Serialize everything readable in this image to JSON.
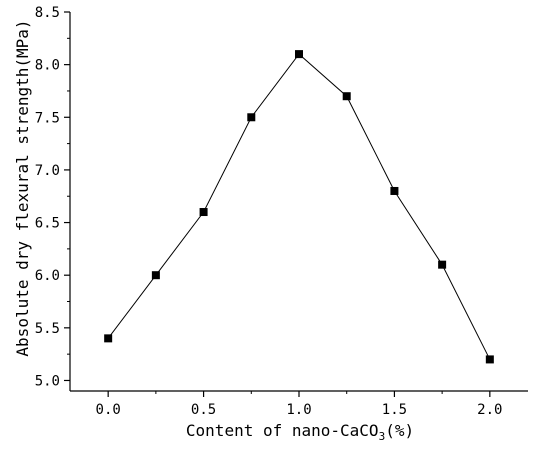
{
  "chart_data": {
    "type": "line",
    "title": "",
    "xlabel_prefix": "Content of nano-CaCO",
    "xlabel_sub": "3",
    "xlabel_suffix": "(%)",
    "ylabel": "Absolute dry flexural strength(MPa)",
    "xlim": [
      -0.2,
      2.2
    ],
    "ylim": [
      4.9,
      8.5
    ],
    "x_ticks": [
      0.0,
      0.5,
      1.0,
      1.5,
      2.0
    ],
    "x_tick_labels": [
      "0.0",
      "0.5",
      "1.0",
      "1.5",
      "2.0"
    ],
    "y_ticks": [
      5.0,
      5.5,
      6.0,
      6.5,
      7.0,
      7.5,
      8.0,
      8.5
    ],
    "y_tick_labels": [
      "5.0",
      "5.5",
      "6.0",
      "6.5",
      "7.0",
      "7.5",
      "8.0",
      "8.5"
    ],
    "grid": false,
    "marker": "square",
    "color": "#000000",
    "series": [
      {
        "x": [
          0.0,
          0.25,
          0.5,
          0.75,
          1.0,
          1.25,
          1.5,
          1.75,
          2.0
        ],
        "y": [
          5.4,
          6.0,
          6.6,
          7.5,
          8.1,
          7.7,
          6.8,
          6.1,
          5.2
        ]
      }
    ]
  }
}
